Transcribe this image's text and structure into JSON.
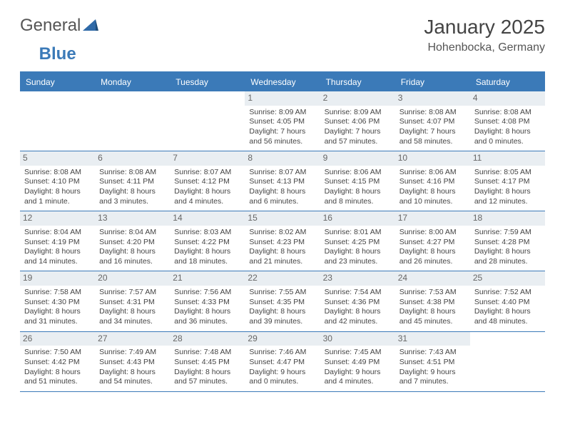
{
  "logo": {
    "part1": "General",
    "part2": "Blue"
  },
  "title": "January 2025",
  "location": "Hohenbocka, Germany",
  "colors": {
    "header_bg": "#3b7ab8",
    "header_text": "#ffffff",
    "daynum_bg": "#e9eef2",
    "daynum_text": "#666666",
    "cell_text": "#444444",
    "page_bg": "#ffffff",
    "rule": "#3b7ab8"
  },
  "fonts": {
    "title_size": 28,
    "sub_size": 16,
    "dayhead_size": 12,
    "daynum_size": 12,
    "cell_size": 10.5
  },
  "day_names": [
    "Sunday",
    "Monday",
    "Tuesday",
    "Wednesday",
    "Thursday",
    "Friday",
    "Saturday"
  ],
  "weeks": [
    [
      {
        "num": "",
        "lines": [
          "",
          "",
          "",
          ""
        ]
      },
      {
        "num": "",
        "lines": [
          "",
          "",
          "",
          ""
        ]
      },
      {
        "num": "",
        "lines": [
          "",
          "",
          "",
          ""
        ]
      },
      {
        "num": "1",
        "lines": [
          "Sunrise: 8:09 AM",
          "Sunset: 4:05 PM",
          "Daylight: 7 hours",
          "and 56 minutes."
        ]
      },
      {
        "num": "2",
        "lines": [
          "Sunrise: 8:09 AM",
          "Sunset: 4:06 PM",
          "Daylight: 7 hours",
          "and 57 minutes."
        ]
      },
      {
        "num": "3",
        "lines": [
          "Sunrise: 8:08 AM",
          "Sunset: 4:07 PM",
          "Daylight: 7 hours",
          "and 58 minutes."
        ]
      },
      {
        "num": "4",
        "lines": [
          "Sunrise: 8:08 AM",
          "Sunset: 4:08 PM",
          "Daylight: 8 hours",
          "and 0 minutes."
        ]
      }
    ],
    [
      {
        "num": "5",
        "lines": [
          "Sunrise: 8:08 AM",
          "Sunset: 4:10 PM",
          "Daylight: 8 hours",
          "and 1 minute."
        ]
      },
      {
        "num": "6",
        "lines": [
          "Sunrise: 8:08 AM",
          "Sunset: 4:11 PM",
          "Daylight: 8 hours",
          "and 3 minutes."
        ]
      },
      {
        "num": "7",
        "lines": [
          "Sunrise: 8:07 AM",
          "Sunset: 4:12 PM",
          "Daylight: 8 hours",
          "and 4 minutes."
        ]
      },
      {
        "num": "8",
        "lines": [
          "Sunrise: 8:07 AM",
          "Sunset: 4:13 PM",
          "Daylight: 8 hours",
          "and 6 minutes."
        ]
      },
      {
        "num": "9",
        "lines": [
          "Sunrise: 8:06 AM",
          "Sunset: 4:15 PM",
          "Daylight: 8 hours",
          "and 8 minutes."
        ]
      },
      {
        "num": "10",
        "lines": [
          "Sunrise: 8:06 AM",
          "Sunset: 4:16 PM",
          "Daylight: 8 hours",
          "and 10 minutes."
        ]
      },
      {
        "num": "11",
        "lines": [
          "Sunrise: 8:05 AM",
          "Sunset: 4:17 PM",
          "Daylight: 8 hours",
          "and 12 minutes."
        ]
      }
    ],
    [
      {
        "num": "12",
        "lines": [
          "Sunrise: 8:04 AM",
          "Sunset: 4:19 PM",
          "Daylight: 8 hours",
          "and 14 minutes."
        ]
      },
      {
        "num": "13",
        "lines": [
          "Sunrise: 8:04 AM",
          "Sunset: 4:20 PM",
          "Daylight: 8 hours",
          "and 16 minutes."
        ]
      },
      {
        "num": "14",
        "lines": [
          "Sunrise: 8:03 AM",
          "Sunset: 4:22 PM",
          "Daylight: 8 hours",
          "and 18 minutes."
        ]
      },
      {
        "num": "15",
        "lines": [
          "Sunrise: 8:02 AM",
          "Sunset: 4:23 PM",
          "Daylight: 8 hours",
          "and 21 minutes."
        ]
      },
      {
        "num": "16",
        "lines": [
          "Sunrise: 8:01 AM",
          "Sunset: 4:25 PM",
          "Daylight: 8 hours",
          "and 23 minutes."
        ]
      },
      {
        "num": "17",
        "lines": [
          "Sunrise: 8:00 AM",
          "Sunset: 4:27 PM",
          "Daylight: 8 hours",
          "and 26 minutes."
        ]
      },
      {
        "num": "18",
        "lines": [
          "Sunrise: 7:59 AM",
          "Sunset: 4:28 PM",
          "Daylight: 8 hours",
          "and 28 minutes."
        ]
      }
    ],
    [
      {
        "num": "19",
        "lines": [
          "Sunrise: 7:58 AM",
          "Sunset: 4:30 PM",
          "Daylight: 8 hours",
          "and 31 minutes."
        ]
      },
      {
        "num": "20",
        "lines": [
          "Sunrise: 7:57 AM",
          "Sunset: 4:31 PM",
          "Daylight: 8 hours",
          "and 34 minutes."
        ]
      },
      {
        "num": "21",
        "lines": [
          "Sunrise: 7:56 AM",
          "Sunset: 4:33 PM",
          "Daylight: 8 hours",
          "and 36 minutes."
        ]
      },
      {
        "num": "22",
        "lines": [
          "Sunrise: 7:55 AM",
          "Sunset: 4:35 PM",
          "Daylight: 8 hours",
          "and 39 minutes."
        ]
      },
      {
        "num": "23",
        "lines": [
          "Sunrise: 7:54 AM",
          "Sunset: 4:36 PM",
          "Daylight: 8 hours",
          "and 42 minutes."
        ]
      },
      {
        "num": "24",
        "lines": [
          "Sunrise: 7:53 AM",
          "Sunset: 4:38 PM",
          "Daylight: 8 hours",
          "and 45 minutes."
        ]
      },
      {
        "num": "25",
        "lines": [
          "Sunrise: 7:52 AM",
          "Sunset: 4:40 PM",
          "Daylight: 8 hours",
          "and 48 minutes."
        ]
      }
    ],
    [
      {
        "num": "26",
        "lines": [
          "Sunrise: 7:50 AM",
          "Sunset: 4:42 PM",
          "Daylight: 8 hours",
          "and 51 minutes."
        ]
      },
      {
        "num": "27",
        "lines": [
          "Sunrise: 7:49 AM",
          "Sunset: 4:43 PM",
          "Daylight: 8 hours",
          "and 54 minutes."
        ]
      },
      {
        "num": "28",
        "lines": [
          "Sunrise: 7:48 AM",
          "Sunset: 4:45 PM",
          "Daylight: 8 hours",
          "and 57 minutes."
        ]
      },
      {
        "num": "29",
        "lines": [
          "Sunrise: 7:46 AM",
          "Sunset: 4:47 PM",
          "Daylight: 9 hours",
          "and 0 minutes."
        ]
      },
      {
        "num": "30",
        "lines": [
          "Sunrise: 7:45 AM",
          "Sunset: 4:49 PM",
          "Daylight: 9 hours",
          "and 4 minutes."
        ]
      },
      {
        "num": "31",
        "lines": [
          "Sunrise: 7:43 AM",
          "Sunset: 4:51 PM",
          "Daylight: 9 hours",
          "and 7 minutes."
        ]
      },
      {
        "num": "",
        "lines": [
          "",
          "",
          "",
          ""
        ]
      }
    ]
  ]
}
